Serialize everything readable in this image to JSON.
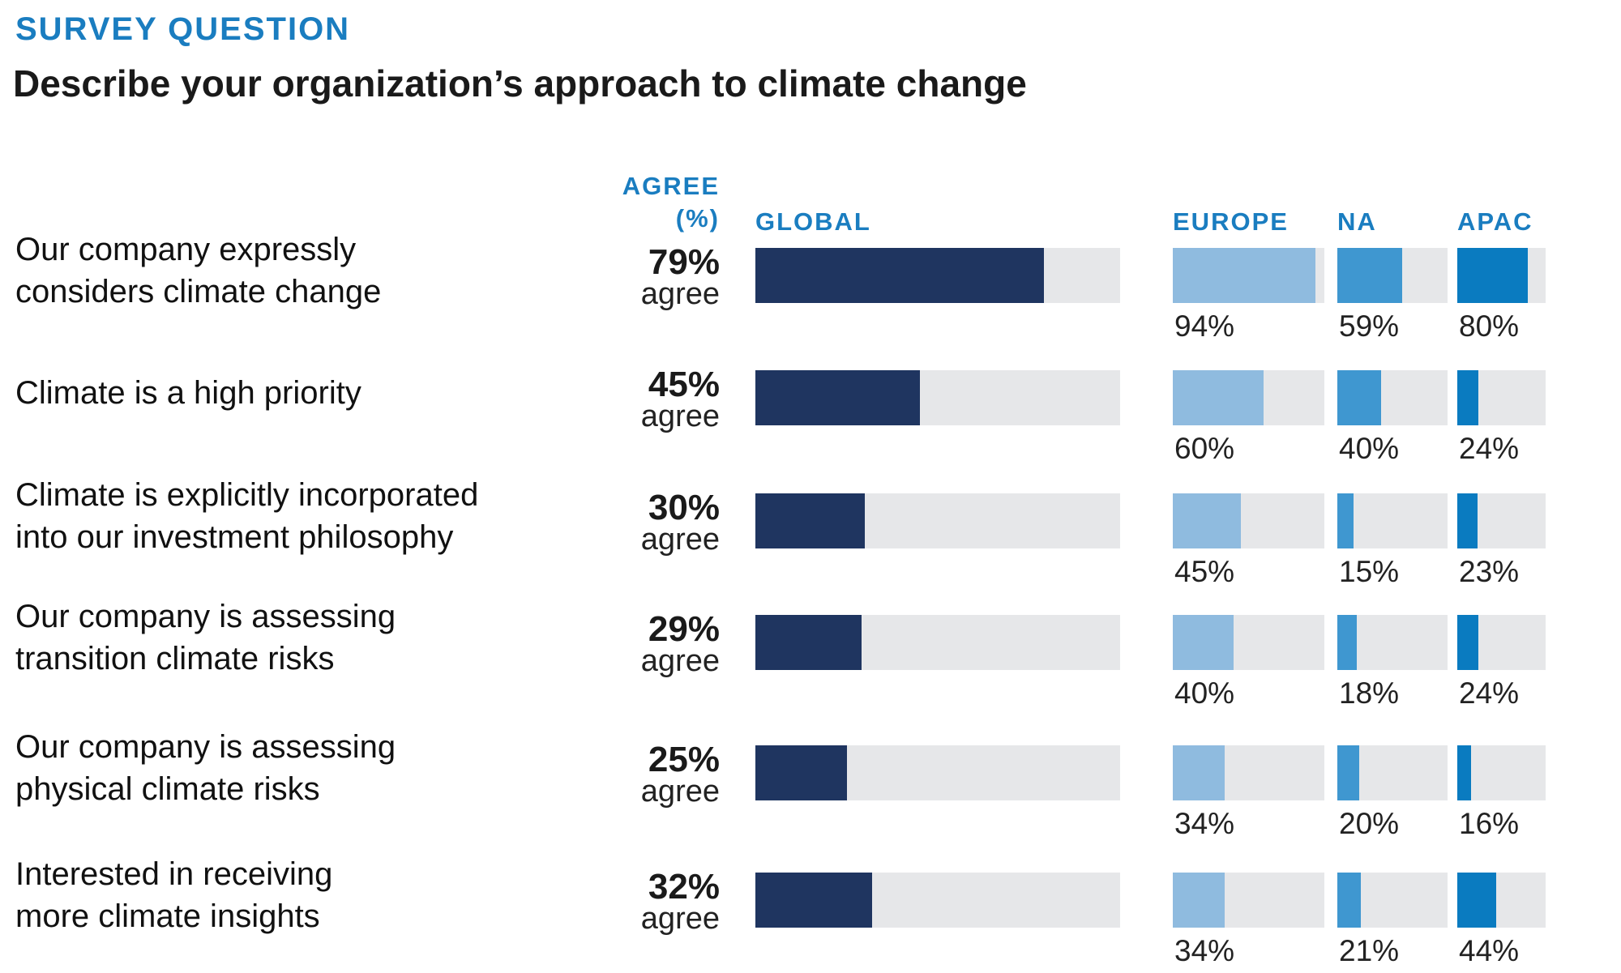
{
  "chart_data": {
    "type": "bar",
    "kicker": "SURVEY QUESTION",
    "title": "Describe your organization’s approach to climate change",
    "agree_header": [
      "AGREE",
      "(%)"
    ],
    "agree_word": "agree",
    "categories": [
      [
        "Our company expressly",
        "considers climate change"
      ],
      [
        "Climate is a high priority"
      ],
      [
        "Climate is explicitly incorporated",
        "into our investment philosophy"
      ],
      [
        "Our company is assessing",
        "transition climate risks"
      ],
      [
        "Our company is assessing",
        "physical climate risks"
      ],
      [
        "Interested in receiving",
        "more climate insights"
      ]
    ],
    "xlim": [
      0,
      100
    ],
    "track_color": "#e6e7e9",
    "series": [
      {
        "name": "GLOBAL",
        "color": "#1f3560",
        "values": [
          79,
          45,
          30,
          29,
          25,
          32
        ],
        "value_labels": [
          "79%",
          "45%",
          "30%",
          "29%",
          "25%",
          "32%"
        ]
      },
      {
        "name": "EUROPE",
        "color": "#8fbbdf",
        "values": [
          94,
          60,
          45,
          40,
          34,
          34
        ],
        "value_labels": [
          "94%",
          "60%",
          "45%",
          "40%",
          "34%",
          "34%"
        ]
      },
      {
        "name": "NA",
        "color": "#3f97d0",
        "values": [
          59,
          40,
          15,
          18,
          20,
          21
        ],
        "value_labels": [
          "59%",
          "40%",
          "15%",
          "18%",
          "20%",
          "21%"
        ]
      },
      {
        "name": "APAC",
        "color": "#0a7bc0",
        "values": [
          80,
          24,
          23,
          24,
          16,
          44
        ],
        "value_labels": [
          "80%",
          "24%",
          "23%",
          "24%",
          "16%",
          "44%"
        ]
      }
    ]
  }
}
